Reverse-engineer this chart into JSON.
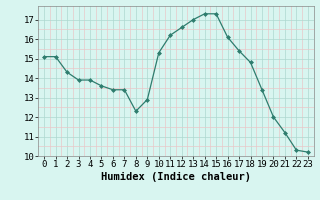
{
  "x": [
    0,
    1,
    2,
    3,
    4,
    5,
    6,
    7,
    8,
    9,
    10,
    11,
    12,
    13,
    14,
    15,
    16,
    17,
    18,
    19,
    20,
    21,
    22,
    23
  ],
  "y": [
    15.1,
    15.1,
    14.3,
    13.9,
    13.9,
    13.6,
    13.4,
    13.4,
    12.3,
    12.9,
    15.3,
    16.2,
    16.6,
    17.0,
    17.3,
    17.3,
    16.1,
    15.4,
    14.8,
    13.4,
    12.0,
    11.2,
    10.3,
    10.2
  ],
  "line_color": "#2e7d6e",
  "marker_color": "#2e7d6e",
  "bg_color": "#d8f5f0",
  "grid_major_color": "#aed8d0",
  "grid_minor_color": "#e8c8c8",
  "xlabel": "Humidex (Indice chaleur)",
  "xlim": [
    -0.5,
    23.5
  ],
  "ylim": [
    10.0,
    17.7
  ],
  "yticks": [
    10,
    11,
    12,
    13,
    14,
    15,
    16,
    17
  ],
  "xticks": [
    0,
    1,
    2,
    3,
    4,
    5,
    6,
    7,
    8,
    9,
    10,
    11,
    12,
    13,
    14,
    15,
    16,
    17,
    18,
    19,
    20,
    21,
    22,
    23
  ],
  "tick_fontsize": 6.5,
  "label_fontsize": 7.5
}
